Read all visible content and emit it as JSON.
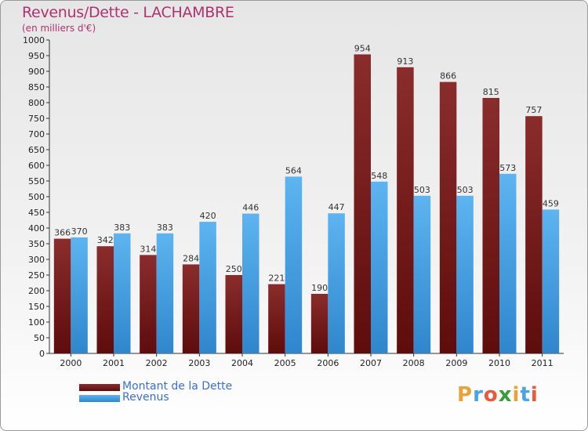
{
  "header": {
    "title": "Revenus/Dette - LACHAMBRE",
    "subtitle": "(en milliers d'€)"
  },
  "colors": {
    "dette": "#7a1a1a",
    "revenus": "#4aa3e6",
    "title": "#b0316e",
    "legend_text": "#3a6fd8"
  },
  "chart_data": {
    "type": "bar",
    "title": "Revenus/Dette - LACHAMBRE",
    "subtitle": "(en milliers d'€)",
    "categories": [
      "2000",
      "2001",
      "2002",
      "2003",
      "2004",
      "2005",
      "2006",
      "2007",
      "2008",
      "2009",
      "2010",
      "2011"
    ],
    "series": [
      {
        "name": "Montant de la Dette",
        "values": [
          366,
          342,
          314,
          284,
          250,
          221,
          190,
          954,
          913,
          866,
          815,
          757
        ]
      },
      {
        "name": "Revenus",
        "values": [
          370,
          383,
          383,
          420,
          446,
          564,
          447,
          548,
          503,
          503,
          573,
          459
        ]
      }
    ],
    "ylim": [
      0,
      1000
    ],
    "ytick_step": 50,
    "grid": false,
    "legend_position": "bottom-left"
  },
  "legend": {
    "items": [
      {
        "label": "Montant de la Dette"
      },
      {
        "label": "Revenus"
      }
    ]
  },
  "logo": {
    "letters": [
      "P",
      "r",
      "o",
      "x",
      "i",
      "t",
      "i"
    ],
    "colors": [
      "#e8a23a",
      "#4aa3e6",
      "#e85a3a",
      "#3a9c3a",
      "#e8a23a",
      "#4aa3e6",
      "#e85a3a"
    ]
  }
}
